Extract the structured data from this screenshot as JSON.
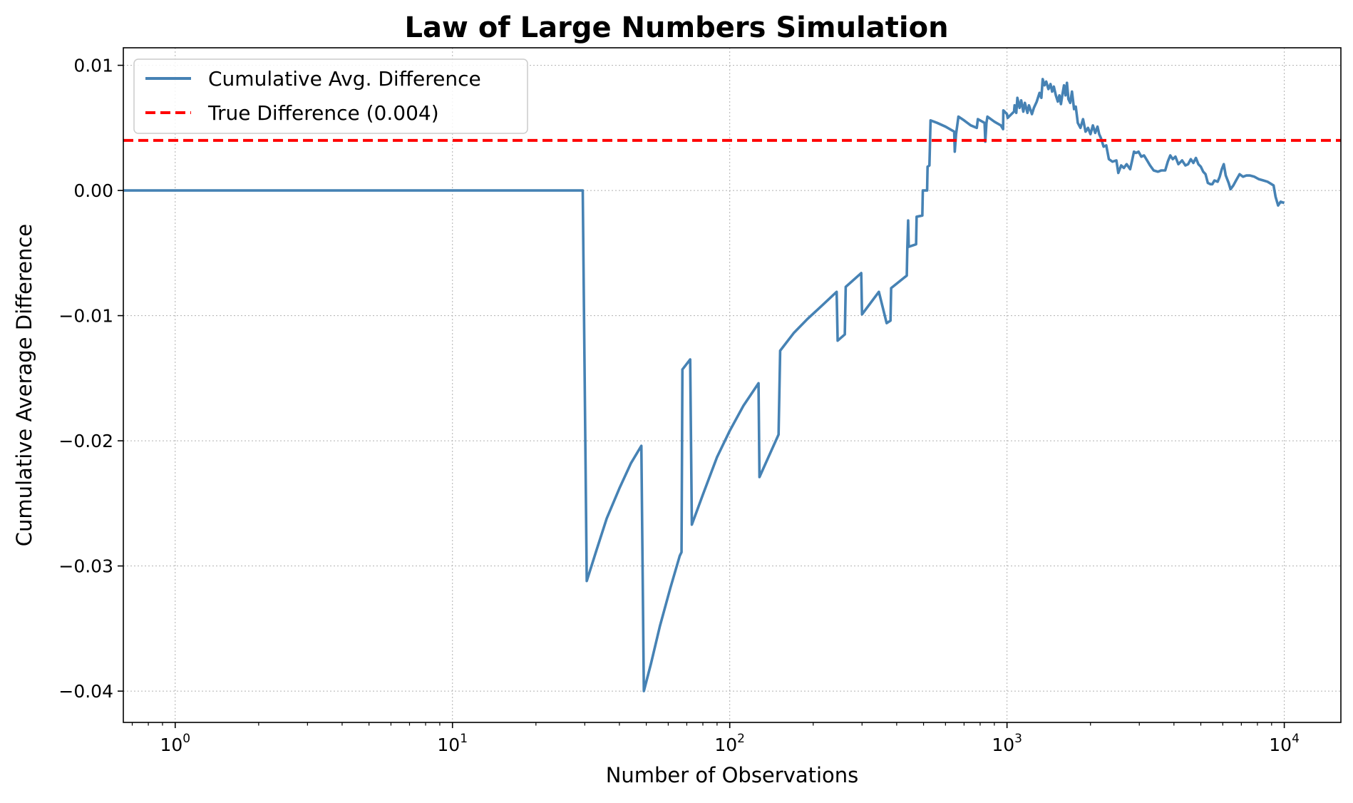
{
  "chart_data": {
    "type": "line",
    "title": "Law of Large Numbers Simulation",
    "xlabel": "Number of Observations",
    "ylabel": "Cumulative Average Difference",
    "xscale": "log",
    "xlim": [
      0.65,
      16000
    ],
    "ylim": [
      -0.0425,
      0.0114
    ],
    "grid": true,
    "legend_position": "top-left",
    "x_ticks": [
      {
        "value": 1,
        "base": "10",
        "exp": "0"
      },
      {
        "value": 10,
        "base": "10",
        "exp": "1"
      },
      {
        "value": 100,
        "base": "10",
        "exp": "2"
      },
      {
        "value": 1000,
        "base": "10",
        "exp": "3"
      },
      {
        "value": 10000,
        "base": "10",
        "exp": "4"
      }
    ],
    "y_ticks": [
      {
        "value": 0.01,
        "label": "0.01"
      },
      {
        "value": 0.0,
        "label": "0.00"
      },
      {
        "value": -0.01,
        "label": "−0.01"
      },
      {
        "value": -0.02,
        "label": "−0.02"
      },
      {
        "value": -0.03,
        "label": "−0.03"
      },
      {
        "value": -0.04,
        "label": "−0.04"
      }
    ],
    "series": [
      {
        "name": "Cumulative Avg. Difference",
        "color": "#4682b4",
        "style": "solid",
        "points": [
          [
            0.65,
            0
          ],
          [
            1,
            0
          ],
          [
            10,
            0
          ],
          [
            29.5,
            0
          ],
          [
            30.5,
            -0.0312
          ],
          [
            33,
            -0.0288
          ],
          [
            36,
            -0.0262
          ],
          [
            40,
            -0.0238
          ],
          [
            44,
            -0.0218
          ],
          [
            48,
            -0.0204
          ],
          [
            49,
            -0.04
          ],
          [
            52,
            -0.0378
          ],
          [
            56,
            -0.0348
          ],
          [
            61,
            -0.0318
          ],
          [
            66,
            -0.0292
          ],
          [
            67,
            -0.0289
          ],
          [
            67.5,
            -0.0143
          ],
          [
            72,
            -0.0135
          ],
          [
            73,
            -0.0267
          ],
          [
            80,
            -0.0243
          ],
          [
            90,
            -0.0213
          ],
          [
            100,
            -0.0192
          ],
          [
            112,
            -0.0172
          ],
          [
            127,
            -0.0154
          ],
          [
            128,
            -0.0229
          ],
          [
            150,
            -0.0195
          ],
          [
            152,
            -0.0128
          ],
          [
            170,
            -0.0114
          ],
          [
            190,
            -0.0103
          ],
          [
            215,
            -0.0092
          ],
          [
            243,
            -0.0081
          ],
          [
            245,
            -0.012
          ],
          [
            260,
            -0.0115
          ],
          [
            262,
            -0.0077
          ],
          [
            298,
            -0.0066
          ],
          [
            300,
            -0.0099
          ],
          [
            345,
            -0.0081
          ],
          [
            368,
            -0.0106
          ],
          [
            380,
            -0.0104
          ],
          [
            382,
            -0.0078
          ],
          [
            435,
            -0.0068
          ],
          [
            437,
            -0.0046
          ],
          [
            440,
            -0.0024
          ],
          [
            442,
            -0.0045
          ],
          [
            470,
            -0.0043
          ],
          [
            472,
            -0.0021
          ],
          [
            495,
            -0.002
          ],
          [
            497,
            0.0
          ],
          [
            515,
            0.0
          ],
          [
            517,
            0.0019
          ],
          [
            525,
            0.002
          ],
          [
            530,
            0.0056
          ],
          [
            560,
            0.0054
          ],
          [
            600,
            0.0051
          ],
          [
            645,
            0.0047
          ],
          [
            648,
            0.0031
          ],
          [
            655,
            0.0045
          ],
          [
            668,
            0.0059
          ],
          [
            700,
            0.0056
          ],
          [
            740,
            0.0052
          ],
          [
            778,
            0.005
          ],
          [
            785,
            0.0057
          ],
          [
            830,
            0.0054
          ],
          [
            835,
            0.0039
          ],
          [
            843,
            0.0054
          ],
          [
            850,
            0.0059
          ],
          [
            900,
            0.0055
          ],
          [
            950,
            0.0052
          ],
          [
            968,
            0.0049
          ],
          [
            970,
            0.0064
          ],
          [
            1000,
            0.0061
          ],
          [
            1005,
            0.0058
          ],
          [
            1060,
            0.0063
          ],
          [
            1065,
            0.0068
          ],
          [
            1080,
            0.0062
          ],
          [
            1090,
            0.0074
          ],
          [
            1110,
            0.0066
          ],
          [
            1125,
            0.0072
          ],
          [
            1145,
            0.0063
          ],
          [
            1160,
            0.007
          ],
          [
            1185,
            0.0062
          ],
          [
            1200,
            0.0068
          ],
          [
            1230,
            0.0061
          ],
          [
            1250,
            0.0066
          ],
          [
            1280,
            0.0071
          ],
          [
            1310,
            0.0078
          ],
          [
            1330,
            0.0074
          ],
          [
            1345,
            0.0089
          ],
          [
            1365,
            0.0084
          ],
          [
            1385,
            0.0087
          ],
          [
            1410,
            0.0081
          ],
          [
            1435,
            0.0085
          ],
          [
            1455,
            0.0079
          ],
          [
            1475,
            0.0083
          ],
          [
            1500,
            0.0076
          ],
          [
            1525,
            0.0071
          ],
          [
            1545,
            0.0076
          ],
          [
            1565,
            0.0069
          ],
          [
            1585,
            0.0077
          ],
          [
            1605,
            0.0084
          ],
          [
            1625,
            0.0076
          ],
          [
            1645,
            0.0086
          ],
          [
            1665,
            0.0073
          ],
          [
            1690,
            0.007
          ],
          [
            1715,
            0.0079
          ],
          [
            1745,
            0.0065
          ],
          [
            1770,
            0.0067
          ],
          [
            1800,
            0.0054
          ],
          [
            1840,
            0.005
          ],
          [
            1880,
            0.0057
          ],
          [
            1920,
            0.0047
          ],
          [
            1960,
            0.005
          ],
          [
            2000,
            0.0045
          ],
          [
            2040,
            0.0052
          ],
          [
            2080,
            0.0046
          ],
          [
            2120,
            0.0051
          ],
          [
            2150,
            0.0045
          ],
          [
            2180,
            0.0042
          ],
          [
            2230,
            0.0035
          ],
          [
            2280,
            0.0036
          ],
          [
            2330,
            0.0025
          ],
          [
            2400,
            0.0023
          ],
          [
            2480,
            0.0024
          ],
          [
            2520,
            0.0014
          ],
          [
            2580,
            0.002
          ],
          [
            2640,
            0.0018
          ],
          [
            2700,
            0.0021
          ],
          [
            2780,
            0.0017
          ],
          [
            2820,
            0.0023
          ],
          [
            2870,
            0.0031
          ],
          [
            2920,
            0.003
          ],
          [
            2980,
            0.0031
          ],
          [
            3050,
            0.0027
          ],
          [
            3120,
            0.0028
          ],
          [
            3200,
            0.0024
          ],
          [
            3280,
            0.002
          ],
          [
            3380,
            0.0016
          ],
          [
            3500,
            0.0015
          ],
          [
            3600,
            0.0016
          ],
          [
            3720,
            0.0016
          ],
          [
            3800,
            0.0023
          ],
          [
            3880,
            0.0028
          ],
          [
            3960,
            0.0025
          ],
          [
            4050,
            0.0027
          ],
          [
            4150,
            0.0021
          ],
          [
            4280,
            0.0024
          ],
          [
            4400,
            0.002
          ],
          [
            4500,
            0.0021
          ],
          [
            4600,
            0.0025
          ],
          [
            4700,
            0.0022
          ],
          [
            4800,
            0.0026
          ],
          [
            4900,
            0.0021
          ],
          [
            5000,
            0.0019
          ],
          [
            5100,
            0.0015
          ],
          [
            5200,
            0.0013
          ],
          [
            5300,
            0.0006
          ],
          [
            5420,
            0.0005
          ],
          [
            5500,
            0.0005
          ],
          [
            5600,
            0.0008
          ],
          [
            5750,
            0.0007
          ],
          [
            5850,
            0.0011
          ],
          [
            5950,
            0.0017
          ],
          [
            6050,
            0.0021
          ],
          [
            6150,
            0.0012
          ],
          [
            6300,
            0.0006
          ],
          [
            6400,
            0.0001
          ],
          [
            6550,
            0.0004
          ],
          [
            6700,
            0.0008
          ],
          [
            6900,
            0.0013
          ],
          [
            7100,
            0.0011
          ],
          [
            7300,
            0.0012
          ],
          [
            7500,
            0.0012
          ],
          [
            7800,
            0.0011
          ],
          [
            8100,
            0.0009
          ],
          [
            8400,
            0.0008
          ],
          [
            8700,
            0.0007
          ],
          [
            9000,
            0.0005
          ],
          [
            9150,
            0.0004
          ],
          [
            9300,
            -0.0005
          ],
          [
            9500,
            -0.0012
          ],
          [
            9700,
            -0.0009
          ],
          [
            10000,
            -0.001
          ]
        ]
      },
      {
        "name": "True Difference (0.004)",
        "color": "#ff0000",
        "style": "dashed",
        "value": 0.004
      }
    ]
  }
}
